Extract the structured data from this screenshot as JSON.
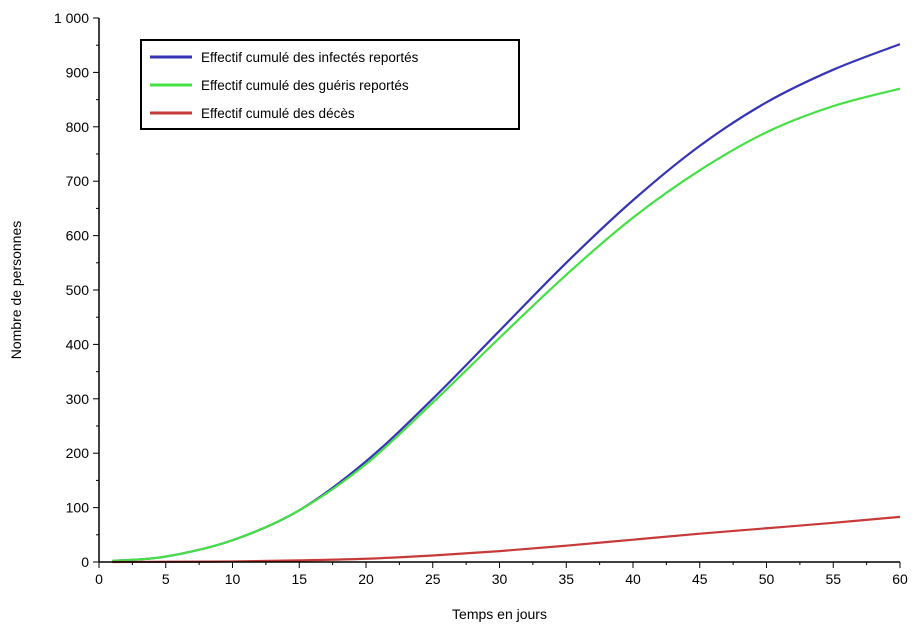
{
  "chart_data": {
    "type": "line",
    "title": "",
    "xlabel": "Temps en jours",
    "ylabel": "Nombre de personnes",
    "xlim": [
      0,
      60
    ],
    "ylim": [
      0,
      1000
    ],
    "x_ticks": [
      0,
      5,
      10,
      15,
      20,
      25,
      30,
      35,
      40,
      45,
      50,
      55,
      60
    ],
    "x_tick_labels": [
      "0",
      "5",
      "10",
      "15",
      "20",
      "25",
      "30",
      "35",
      "40",
      "45",
      "50",
      "55",
      "60"
    ],
    "y_ticks": [
      0,
      100,
      200,
      300,
      400,
      500,
      600,
      700,
      800,
      900,
      1000
    ],
    "y_tick_labels": [
      "0",
      "100",
      "200",
      "300",
      "400",
      "500",
      "600",
      "700",
      "800",
      "900",
      "1 000"
    ],
    "grid": false,
    "legend_position": "top-left",
    "x": [
      1,
      5,
      10,
      15,
      20,
      25,
      30,
      35,
      40,
      45,
      50,
      55,
      60
    ],
    "series": [
      {
        "name": "Effectif cumulé des infectés reportés",
        "color": "#3535b5",
        "values": [
          2,
          10,
          40,
          95,
          185,
          300,
          425,
          550,
          665,
          765,
          845,
          905,
          952
        ]
      },
      {
        "name": "Effectif cumulé des guéris reportés",
        "color": "#44e044",
        "values": [
          2,
          10,
          40,
          95,
          180,
          293,
          412,
          528,
          633,
          720,
          790,
          838,
          870
        ]
      },
      {
        "name": "Effectif cumulé des décès",
        "color": "#c83a3a",
        "values": [
          0,
          0.5,
          1,
          3,
          6,
          12,
          20,
          30,
          41,
          52,
          62,
          72,
          83
        ]
      }
    ]
  }
}
